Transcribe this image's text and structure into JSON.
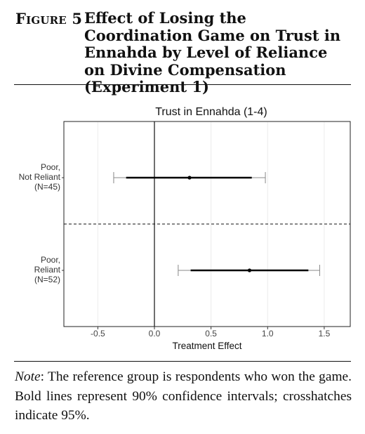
{
  "figure": {
    "label": "Figure 5",
    "title": "Effect of Losing the Coordination Game on Trust in Ennahda by Level of Reliance on Divine Compensation (Experiment 1)"
  },
  "note": {
    "lead": "Note",
    "text": ": The reference group is respondents who won the game. Bold lines represent 90% confidence intervals; crosshatches indicate 95%."
  },
  "chart_data": {
    "type": "coefficient-plot",
    "title": "Trust in Ennahda (1-4)",
    "xlabel": "Treatment Effect",
    "ylabel": "",
    "xlim": [
      -0.8,
      1.73
    ],
    "xticks": [
      -0.5,
      0.0,
      0.5,
      1.0,
      1.5
    ],
    "xtick_labels": [
      "-0.5",
      "0.0",
      "0.5",
      "1.0",
      "1.5"
    ],
    "reference_line": 0,
    "grid": "vertical",
    "categories": [
      {
        "label_lines": [
          "Poor,",
          "Not Reliant",
          "(N=45)"
        ],
        "estimate": 0.31,
        "ci90": [
          -0.25,
          0.86
        ],
        "ci95": [
          -0.36,
          0.98
        ]
      },
      {
        "label_lines": [
          "Poor,",
          "Reliant",
          "(N=52)"
        ],
        "estimate": 0.84,
        "ci90": [
          0.32,
          1.36
        ],
        "ci95": [
          0.21,
          1.46
        ]
      }
    ]
  }
}
